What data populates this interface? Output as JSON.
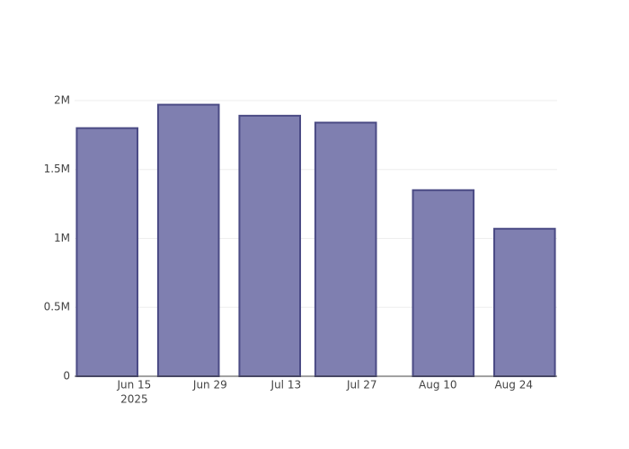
{
  "chart_data": {
    "type": "bar",
    "x": [
      "2025-06-10",
      "2025-06-25",
      "2025-07-10",
      "2025-07-24",
      "2025-08-11",
      "2025-08-26"
    ],
    "values": [
      1800000,
      1970000,
      1890000,
      1840000,
      1350000,
      1070000
    ],
    "color": "#7f7fb0",
    "edge_color": "#4b4b85",
    "xlim": [
      "2025-06-04",
      "2025-09-01"
    ],
    "xticks": [
      {
        "value": "2025-06-15",
        "label": "Jun 15"
      },
      {
        "value": "2025-06-29",
        "label": "Jun 29"
      },
      {
        "value": "2025-07-13",
        "label": "Jul 13"
      },
      {
        "value": "2025-07-27",
        "label": "Jul 27"
      },
      {
        "value": "2025-08-10",
        "label": "Aug 10"
      },
      {
        "value": "2025-08-24",
        "label": "Aug 24"
      }
    ],
    "xtick_year_label": "2025",
    "ylim": [
      0,
      2078000
    ],
    "yticks": [
      0,
      {
        "value": 500000,
        "label": "0.5M"
      },
      {
        "value": 1000000,
        "label": "1M"
      },
      {
        "value": 1500000,
        "label": "1.5M"
      },
      {
        "value": 2000000,
        "label": "2M"
      }
    ],
    "grid": true
  }
}
